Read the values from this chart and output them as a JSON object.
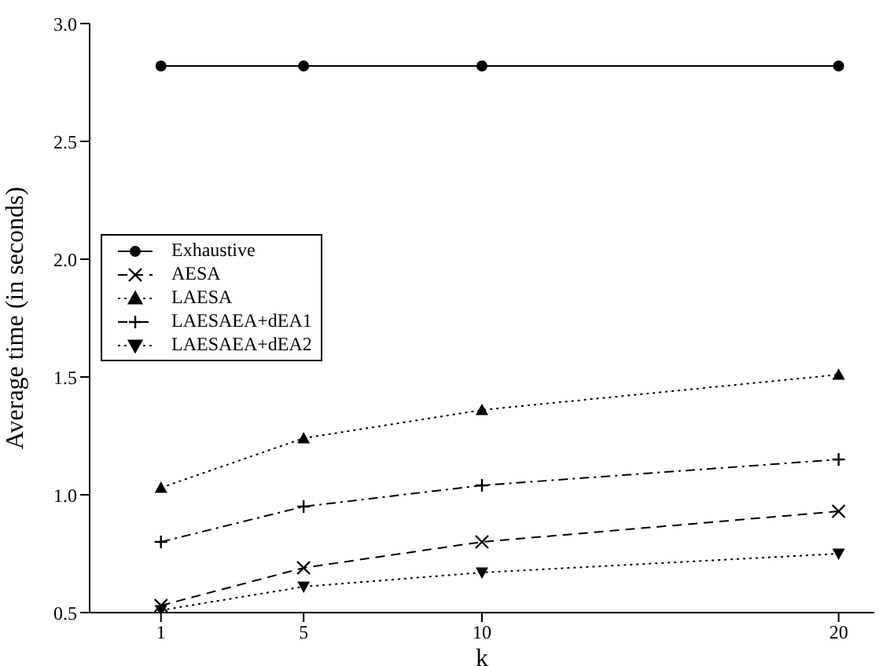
{
  "chart_data": {
    "type": "line",
    "xlabel": "k",
    "ylabel": "Average time (in seconds)",
    "x": [
      1,
      5,
      10,
      20
    ],
    "xlim": [
      -1,
      21
    ],
    "xticks": [
      1,
      5,
      10,
      20
    ],
    "ylim": [
      0.5,
      3.0
    ],
    "yticks": [
      {
        "value": 0.5,
        "label": "0.5"
      },
      {
        "value": 1,
        "label": "1.0"
      },
      {
        "value": 1.5,
        "label": "1.5"
      },
      {
        "value": 2,
        "label": "2.0"
      },
      {
        "value": 2.5,
        "label": "2.5"
      },
      {
        "value": 3,
        "label": "3.0"
      }
    ],
    "grid": false,
    "legend": "left",
    "series": [
      {
        "name": "Exhaustive",
        "color": "#000000",
        "values": [
          2.82,
          2.82,
          2.82,
          2.82
        ],
        "marker": "circle",
        "line_style": "solid"
      },
      {
        "name": "AESA",
        "color": "#000000",
        "values": [
          0.53,
          0.69,
          0.8,
          0.93
        ],
        "marker": "x",
        "line_style": "dashed"
      },
      {
        "name": "LAESA",
        "color": "#000000",
        "values": [
          1.03,
          1.24,
          1.36,
          1.51
        ],
        "marker": "triangle",
        "line_style": "dotted"
      },
      {
        "name": "LAESAEA+dEA1",
        "color": "#000000",
        "values": [
          0.8,
          0.95,
          1.04,
          1.15
        ],
        "marker": "plus",
        "line_style": "dashdot"
      },
      {
        "name": "LAESAEA+dEA2",
        "color": "#000000",
        "values": [
          0.51,
          0.61,
          0.67,
          0.75
        ],
        "marker": "triangle-down",
        "line_style": "dotted"
      }
    ]
  }
}
